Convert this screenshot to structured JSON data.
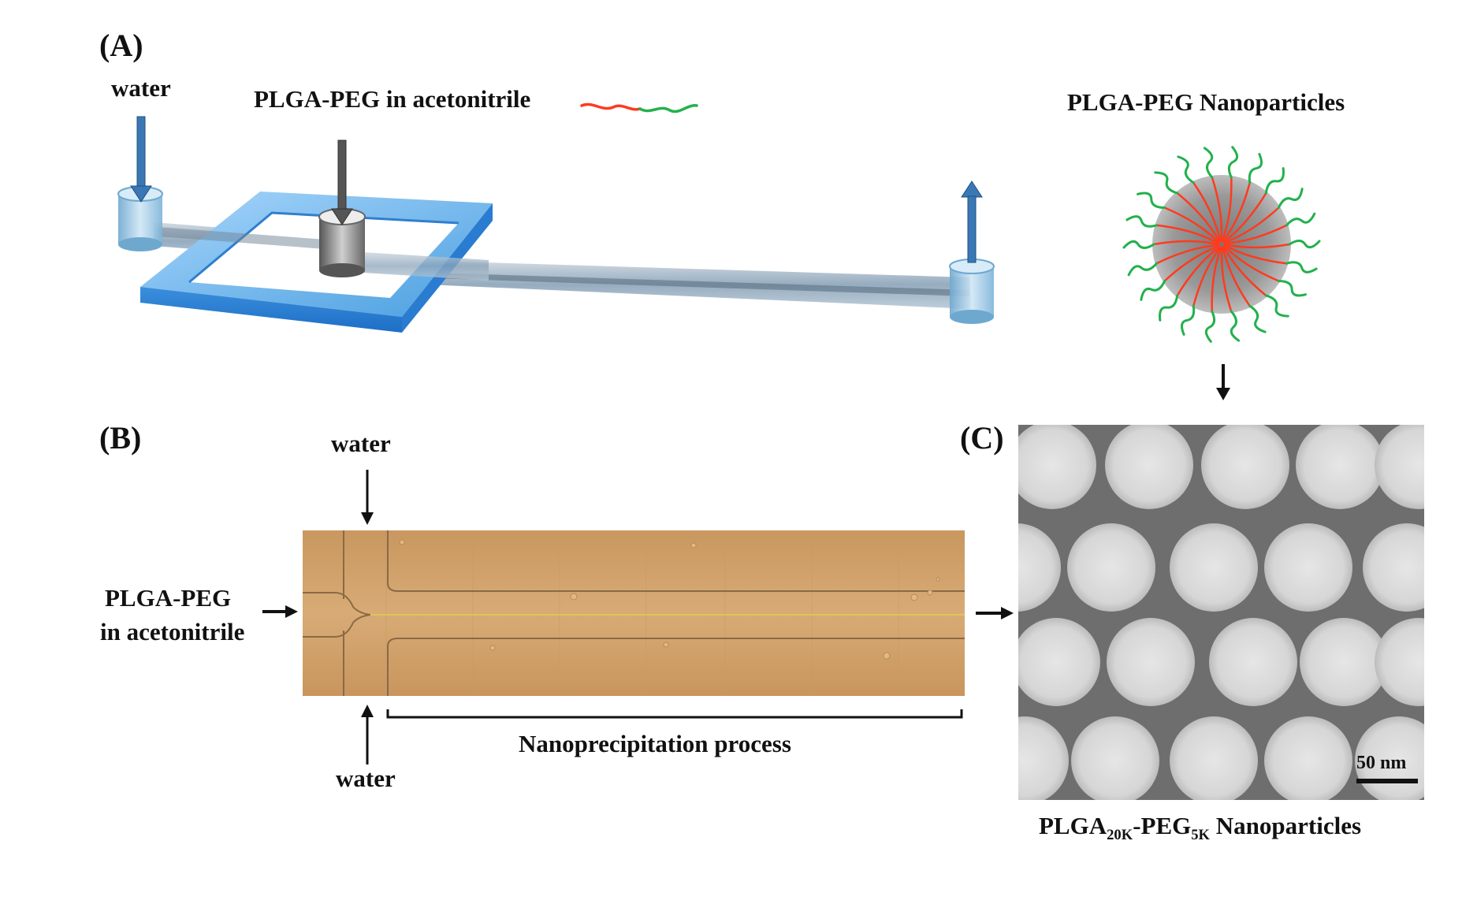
{
  "panel_a": {
    "letter": "(A)",
    "water_label": "water",
    "polymer_label": "PLGA-PEG in acetonitrile",
    "nanoparticle_title": "PLGA-PEG Nanoparticles"
  },
  "panel_b": {
    "letter": "(B)",
    "water_top": "water",
    "water_bottom": "water",
    "inlet_line1": "PLGA-PEG",
    "inlet_line2": "in acetonitrile",
    "process_label": "Nanoprecipitation process"
  },
  "panel_c": {
    "letter": "(C)",
    "scale_bar": "50 nm",
    "caption_main1": "PLGA",
    "caption_sub1": "20K",
    "caption_main2": "-PEG",
    "caption_sub2": "5K",
    "caption_main3": " Nanoparticles"
  },
  "colors": {
    "chip_blue": "#4a9fe0",
    "arrow_blue": "#3a78b5",
    "plga_red": "#ff3b1f",
    "peg_green": "#22b14c",
    "channel_tan": "#d3a470",
    "sem_dark": "#6e6e6e",
    "sem_particle": "#e0e0e0"
  }
}
